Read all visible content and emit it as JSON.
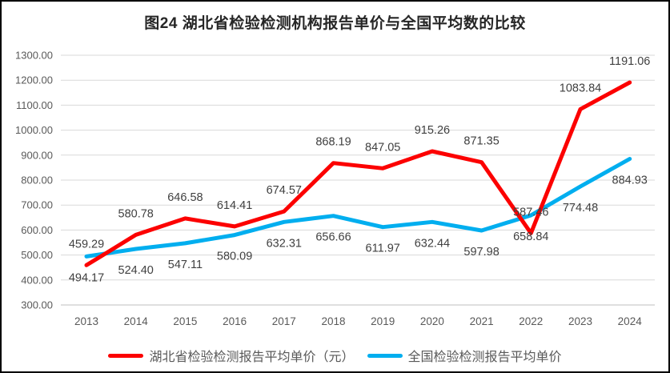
{
  "chart_data": {
    "type": "line",
    "title": "图24 湖北省检验检测机构报告单价与全国平均数的比较",
    "categories": [
      "2013",
      "2014",
      "2015",
      "2016",
      "2017",
      "2018",
      "2019",
      "2020",
      "2021",
      "2022",
      "2023",
      "2024"
    ],
    "series": [
      {
        "id": "hubei",
        "name": "湖北省检验检测报告平均单价（元）",
        "color": "#FC0000",
        "values": [
          459.29,
          580.78,
          646.58,
          614.41,
          674.57,
          868.19,
          847.05,
          915.26,
          871.35,
          587.46,
          1083.84,
          1191.06
        ]
      },
      {
        "id": "national",
        "name": "全国检验检测报告平均单价",
        "color": "#00AEEF",
        "values": [
          494.17,
          524.4,
          547.11,
          580.09,
          632.31,
          656.66,
          611.97,
          632.44,
          597.98,
          658.84,
          774.48,
          884.93
        ]
      }
    ],
    "ylim": [
      300,
      1300
    ],
    "ytick_labels": [
      "1300.00",
      "1200.00",
      "1100.00",
      "1000.00",
      "900.00",
      "800.00",
      "700.00",
      "600.00",
      "500.00",
      "400.00",
      "300.00"
    ],
    "grid": true,
    "data_labels": true,
    "label_decimals": 2,
    "legend_position": "bottom"
  },
  "colors": {
    "gridline": "#D9D9D9",
    "axis_line": "#BFBFBF",
    "tick_text": "#595959",
    "data_label_text": "#404040",
    "title_text": "#262626",
    "border": "#000000",
    "background": "#FFFFFF"
  }
}
